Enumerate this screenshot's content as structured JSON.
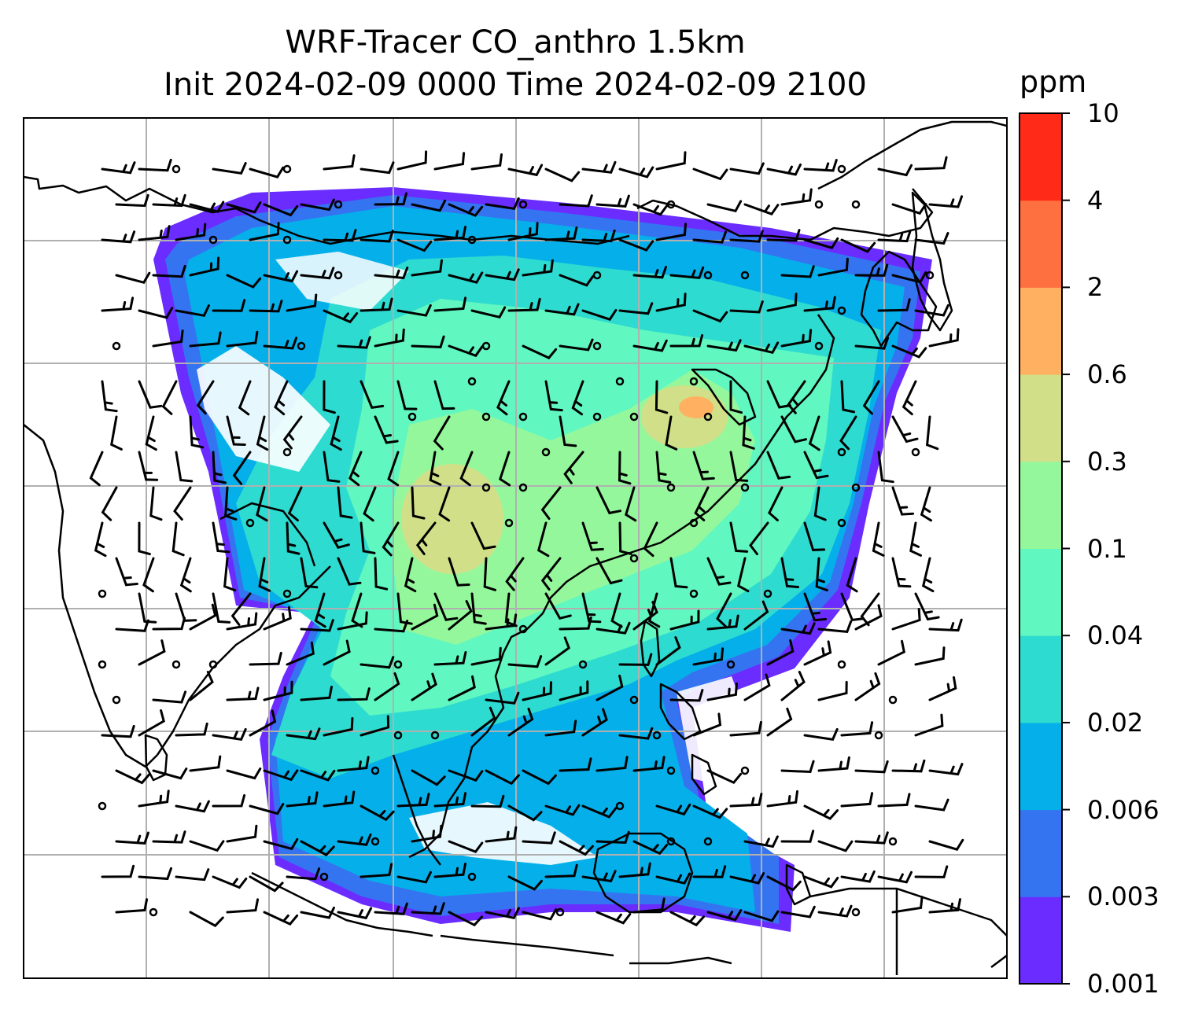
{
  "title": {
    "line1": "WRF-Tracer CO_anthro 1.5km",
    "line2": "Init 2024-02-09 0000 Time 2024-02-09 2100"
  },
  "colorbar": {
    "unit": "ppm",
    "levels": [
      "0.001",
      "0.003",
      "0.006",
      "0.02",
      "0.04",
      "0.1",
      "0.3",
      "0.6",
      "2",
      "4",
      "10"
    ],
    "colors": [
      "#6a2cff",
      "#3574f0",
      "#05b0ea",
      "#2edbd0",
      "#60f7c0",
      "#95f79c",
      "#d1e088",
      "#ffb060",
      "#ff7040",
      "#ff2a18"
    ]
  },
  "map": {
    "colors": {
      "frame": "#000000",
      "gridline": "#b0b0b0",
      "coastline": "#000000",
      "wind_barb": "#000000"
    }
  }
}
